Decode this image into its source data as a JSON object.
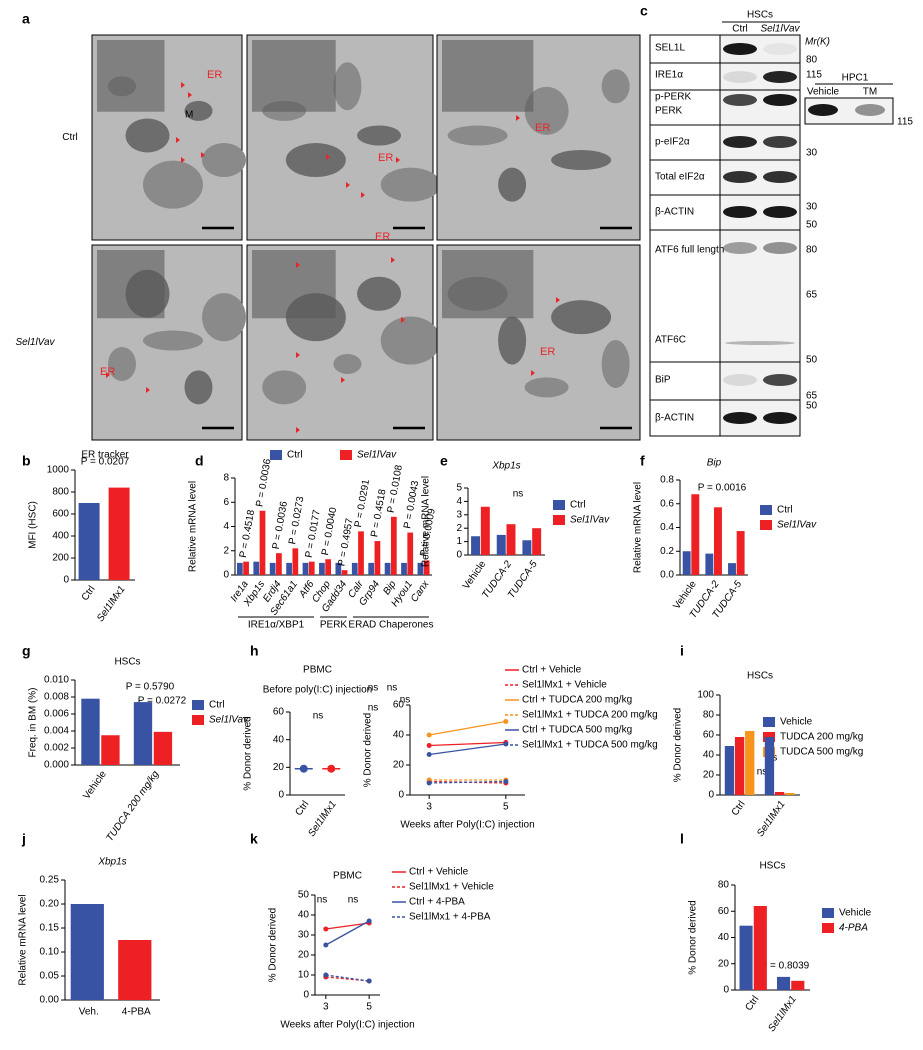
{
  "panel_labels": [
    "a",
    "b",
    "c",
    "d",
    "e",
    "f",
    "g",
    "h",
    "i",
    "j",
    "k",
    "l"
  ],
  "micrographs": {
    "rows": [
      "Ctrl",
      "Sel1lVav"
    ],
    "marks": [
      "M",
      "ER",
      "ER",
      "ER",
      "ER",
      "ER",
      "ER"
    ]
  },
  "blot": {
    "header": "HSCs",
    "lanes": [
      "Ctrl",
      "Sel1lVav"
    ],
    "mr": "Mr(K)",
    "labels": [
      "SEL1L",
      "IRE1α",
      "p-PERK",
      "PERK",
      "p-eIF2α",
      "Total eIF2α",
      "β-ACTIN",
      "ATF6 full length",
      "ATF6C",
      "BiP",
      "β-ACTIN"
    ],
    "markers": [
      80,
      115,
      115,
      30,
      30,
      50,
      80,
      65,
      50,
      65,
      50
    ],
    "inset": {
      "title": "HPC1",
      "lanes": [
        "Vehicle",
        "TM"
      ]
    }
  },
  "chart_data": [
    {
      "type": "bar",
      "title": "ER tracker",
      "y_label": "MFI (HSC)",
      "categories": [
        "Ctrl",
        "Sel1lMx1"
      ],
      "values": [
        700,
        840
      ],
      "colors": [
        "#3953a4",
        "#ed2024"
      ],
      "ylim": [
        0,
        1000
      ],
      "yticks": [
        0,
        200,
        400,
        600,
        800,
        1000
      ],
      "annotations": [
        "P = 0.0207"
      ]
    },
    {
      "type": "bar",
      "y_label": "Relative mRNA level",
      "categories": [
        "Ire1a",
        "Xbp1s",
        "Erdj4",
        "Sec61a1",
        "Atf6",
        "Chop",
        "Gadd34",
        "Calr",
        "Grp94",
        "Bip",
        "Hyou1",
        "Canx"
      ],
      "series": [
        {
          "name": "Ctrl",
          "color": "#3953a4",
          "values": [
            1,
            1.1,
            1,
            1,
            1,
            1,
            1,
            1,
            1,
            1,
            1,
            1
          ]
        },
        {
          "name": "Sel1lVav",
          "color": "#ed2024",
          "values": [
            1.1,
            5.3,
            1.8,
            2.2,
            1.1,
            1.3,
            0.4,
            3.6,
            2.8,
            4.8,
            3.5,
            1.2
          ]
        }
      ],
      "ylim": [
        0,
        8
      ],
      "yticks": [
        0,
        2,
        4,
        6,
        8
      ],
      "groups": [
        "IRE1α/XBP1",
        "PERK",
        "ERAD Chaperones"
      ],
      "annotations": [
        "P = 0.4518",
        "P = 0.0036",
        "P = 0.0036",
        "P = 0.0273",
        "P = 0.0177",
        "P = 0.0040",
        "P = 0.4957",
        "P = 0.0291",
        "P = 0.4518",
        "P = 0.0108",
        "P = 0.0043",
        "P = 0.0009"
      ]
    },
    {
      "type": "bar",
      "title": "Xbp1s",
      "y_label": "Relative mRNA level",
      "categories": [
        "Vehicle",
        "TUDCA-2",
        "TUDCA-5"
      ],
      "series": [
        {
          "name": "Ctrl",
          "color": "#3953a4",
          "values": [
            1.4,
            1.5,
            1.1
          ]
        },
        {
          "name": "Sel1lVav",
          "color": "#ed2024",
          "values": [
            3.6,
            2.3,
            2.0
          ]
        }
      ],
      "ylim": [
        0,
        5
      ],
      "yticks": [
        0,
        1,
        2,
        3,
        4,
        5
      ],
      "annotations": [
        "ns"
      ]
    },
    {
      "type": "bar",
      "title": "Bip",
      "y_label": "Relative mRNA level",
      "categories": [
        "Vehicle",
        "TUDCA-2",
        "TUDCA-5"
      ],
      "series": [
        {
          "name": "Ctrl",
          "color": "#3953a4",
          "values": [
            0.2,
            0.18,
            0.1
          ]
        },
        {
          "name": "Sel1lVav",
          "color": "#ed2024",
          "values": [
            0.68,
            0.57,
            0.37
          ]
        }
      ],
      "ylim": [
        0,
        0.8
      ],
      "yticks": [
        {
          "value": 0,
          "label": "0.0"
        },
        0.2,
        0.4,
        0.6,
        0.8
      ],
      "annotations": [
        "P = 0.0016"
      ]
    },
    {
      "type": "bar",
      "title": "HSCs",
      "y_label": "Freq. in BM (%)",
      "categories": [
        "Vehicle",
        "TUDCA 200 mg/kg"
      ],
      "series": [
        {
          "name": "Ctrl",
          "color": "#3953a4",
          "values": [
            0.0078,
            0.0074
          ]
        },
        {
          "name": "Sel1lVav",
          "color": "#ed2024",
          "values": [
            0.0035,
            0.0039
          ]
        }
      ],
      "ylim": [
        0,
        0.01
      ],
      "yticks": [
        {
          "value": 0,
          "label": "0.000"
        },
        0.002,
        0.004,
        0.006,
        0.008,
        {
          "value": 0.01,
          "label": "0.010"
        }
      ],
      "annotations": [
        "P = 0.5790",
        "P = 0.0272"
      ]
    },
    {
      "type": "dot",
      "title": "PBMC",
      "subtitle": "Before poly(I:C) injection",
      "y_label": "% Donor derived",
      "categories": [
        "Ctrl",
        "Sel1lMx1"
      ],
      "values": [
        19,
        19
      ],
      "colors": [
        "#3953a4",
        "#ed2024"
      ],
      "ylim": [
        0,
        60
      ],
      "yticks": [
        0,
        20,
        40,
        60
      ],
      "annotations": [
        "ns"
      ]
    },
    {
      "type": "line",
      "y_label": "% Donor derived",
      "x_label": "Weeks after Poly(I:C) injection",
      "x": [
        3,
        5
      ],
      "xlim": [
        2.5,
        5.5
      ],
      "xticks": [
        3,
        5
      ],
      "ylim": [
        0,
        60
      ],
      "yticks": [
        0,
        20,
        40,
        60
      ],
      "series": [
        {
          "name": "Ctrl + Vehicle",
          "color": "#ed2024",
          "values": [
            33,
            35
          ]
        },
        {
          "name": "Sel1lMx1 + Vehicle",
          "color": "#ed2024",
          "dashed": true,
          "values": [
            9,
            8
          ]
        },
        {
          "name": "Ctrl + TUDCA 200 mg/kg",
          "color": "#f7941d",
          "values": [
            40,
            49
          ]
        },
        {
          "name": "Sel1lMx1 + TUDCA 200 mg/kg",
          "color": "#f7941d",
          "dashed": true,
          "values": [
            10,
            10
          ]
        },
        {
          "name": "Ctrl + TUDCA 500 mg/kg",
          "color": "#3953a4",
          "values": [
            27,
            34
          ]
        },
        {
          "name": "Sel1lMx1 + TUDCA 500 mg/kg",
          "color": "#3953a4",
          "dashed": true,
          "values": [
            8,
            9
          ]
        }
      ],
      "annotations": [
        "ns",
        "ns",
        "ns",
        "ns"
      ]
    },
    {
      "type": "bar",
      "title": "HSCs",
      "y_label": "% Donor derived",
      "categories": [
        "Ctrl",
        "Sel1lMx1"
      ],
      "series": [
        {
          "name": "Vehicle",
          "color": "#3953a4",
          "values": [
            49,
            58
          ]
        },
        {
          "name": "TUDCA 200 mg/kg",
          "color": "#ed2024",
          "values": [
            58,
            3
          ]
        },
        {
          "name": "TUDCA 500 mg/kg",
          "color": "#f7941d",
          "values": [
            64,
            2
          ]
        }
      ],
      "ylim": [
        0,
        100
      ],
      "yticks": [
        0,
        20,
        40,
        60,
        80,
        100
      ],
      "annotations": [
        "ns",
        "ns"
      ]
    },
    {
      "type": "bar",
      "title": "Xbp1s",
      "y_label": "Relative mRNA level",
      "categories": [
        "Veh.",
        "4-PBA"
      ],
      "values": [
        0.2,
        0.125
      ],
      "colors": [
        "#3953a4",
        "#ed2024"
      ],
      "ylim": [
        0,
        0.25
      ],
      "yticks": [
        {
          "value": 0,
          "label": "0.00"
        },
        0.05,
        {
          "value": 0.1,
          "label": "0.10"
        },
        0.15,
        {
          "value": 0.2,
          "label": "0.20"
        },
        0.25
      ]
    },
    {
      "type": "line",
      "title": "PBMC",
      "y_label": "% Donor derived",
      "x_label": "Weeks after Poly(I:C) injection",
      "x": [
        3,
        5
      ],
      "xlim": [
        2.5,
        5.5
      ],
      "xticks": [
        3,
        5
      ],
      "ylim": [
        0,
        50
      ],
      "yticks": [
        0,
        10,
        20,
        30,
        40,
        50
      ],
      "series": [
        {
          "name": "Ctrl + Vehicle",
          "color": "#ed2024",
          "values": [
            33,
            36
          ]
        },
        {
          "name": "Sel1lMx1 + Vehicle",
          "color": "#ed2024",
          "dashed": true,
          "values": [
            9,
            7
          ]
        },
        {
          "name": "Ctrl + 4-PBA",
          "color": "#3953a4",
          "values": [
            25,
            37
          ]
        },
        {
          "name": "Sel1lMx1 + 4-PBA",
          "color": "#3953a4",
          "dashed": true,
          "values": [
            10,
            7
          ]
        }
      ],
      "annotations": [
        "ns",
        "ns"
      ]
    },
    {
      "type": "bar",
      "title": "HSCs",
      "y_label": "% Donor derived",
      "categories": [
        "Ctrl",
        "Sel1lMx1"
      ],
      "series": [
        {
          "name": "Vehicle",
          "color": "#3953a4",
          "values": [
            49,
            10
          ]
        },
        {
          "name": "4-PBA",
          "color": "#ed2024",
          "values": [
            64,
            7
          ]
        }
      ],
      "ylim": [
        0,
        80
      ],
      "yticks": [
        0,
        20,
        40,
        60,
        80
      ],
      "annotations": [
        "P = 0.8039"
      ]
    }
  ]
}
